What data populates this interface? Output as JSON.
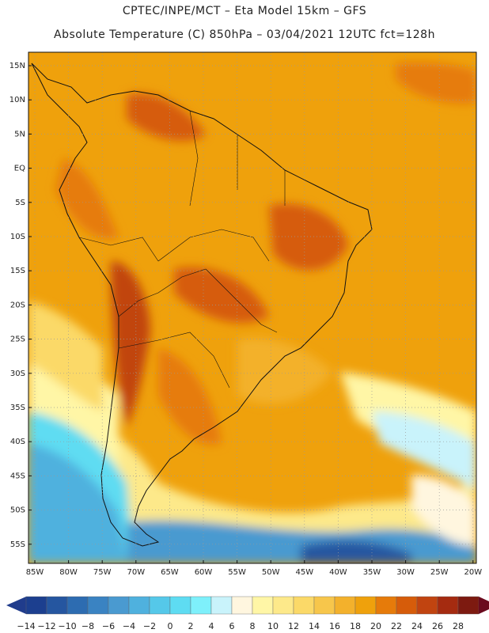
{
  "header": {
    "title_line1": "CPTEC/INPE/MCT –  Eta Model 15km – GFS",
    "title_line2": "Absolute Temperature (C) 850hPa – 03/04/2021 12UTC fct=128h"
  },
  "axes": {
    "lat_labels": [
      "15N",
      "10N",
      "5N",
      "EQ",
      "5S",
      "10S",
      "15S",
      "20S",
      "25S",
      "30S",
      "35S",
      "40S",
      "45S",
      "50S",
      "55S"
    ],
    "lon_labels": [
      "85W",
      "80W",
      "75W",
      "70W",
      "65W",
      "60W",
      "55W",
      "50W",
      "45W",
      "40W",
      "35W",
      "30W",
      "25W",
      "20W"
    ],
    "grid": "dotted"
  },
  "colorbar": {
    "labels": [
      "-14",
      "-12",
      "-10",
      "-8",
      "-6",
      "-4",
      "-2",
      "0",
      "2",
      "4",
      "6",
      "8",
      "10",
      "12",
      "14",
      "16",
      "18",
      "20",
      "22",
      "24",
      "26",
      "28"
    ],
    "colors": [
      "#1c3f8f",
      "#2556a0",
      "#2d6cb1",
      "#3a83c2",
      "#4a9ad0",
      "#4fb1de",
      "#55c8e9",
      "#5edcf2",
      "#7ef0fb",
      "#c9f3fb",
      "#fff6df",
      "#fff6a6",
      "#fde98a",
      "#fbd968",
      "#f7c64b",
      "#f3b12c",
      "#efa10c",
      "#e67b0a",
      "#d65c0a",
      "#c14410",
      "#a52b10",
      "#7d1a10"
    ],
    "under_color": "#203c8c",
    "over_color": "#6a0a1e"
  }
}
